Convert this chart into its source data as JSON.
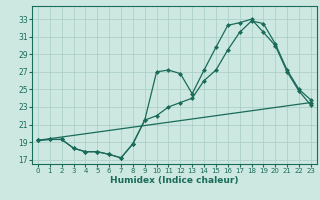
{
  "xlabel": "Humidex (Indice chaleur)",
  "bg_color": "#cce8e0",
  "line_color": "#1a6b5a",
  "grid_color": "#a8ccc4",
  "xlim": [
    -0.5,
    23.5
  ],
  "ylim": [
    16.5,
    34.5
  ],
  "xticks": [
    0,
    1,
    2,
    3,
    4,
    5,
    6,
    7,
    8,
    9,
    10,
    11,
    12,
    13,
    14,
    15,
    16,
    17,
    18,
    19,
    20,
    21,
    22,
    23
  ],
  "yticks": [
    17,
    19,
    21,
    23,
    25,
    27,
    29,
    31,
    33
  ],
  "line1_x": [
    0,
    1,
    2,
    3,
    4,
    5,
    6,
    7,
    8,
    9,
    10,
    11,
    12,
    13,
    14,
    15,
    16,
    17,
    18,
    19,
    20,
    21,
    22,
    23
  ],
  "line1_y": [
    19.2,
    19.3,
    19.3,
    18.3,
    17.9,
    17.9,
    17.6,
    17.2,
    18.8,
    21.5,
    27.0,
    27.2,
    26.8,
    24.5,
    27.2,
    29.8,
    32.3,
    32.6,
    33.0,
    31.5,
    30.0,
    27.0,
    24.8,
    23.2
  ],
  "line2_x": [
    0,
    1,
    2,
    3,
    4,
    5,
    6,
    7,
    8,
    9,
    10,
    11,
    12,
    13,
    14,
    15,
    16,
    17,
    18,
    19,
    20,
    21,
    22,
    23
  ],
  "line2_y": [
    19.2,
    19.3,
    19.3,
    18.3,
    17.9,
    17.9,
    17.6,
    17.2,
    18.8,
    21.5,
    22.0,
    23.0,
    23.5,
    24.0,
    26.0,
    27.2,
    29.5,
    31.5,
    32.8,
    32.5,
    30.2,
    27.2,
    25.0,
    23.8
  ],
  "line3_x": [
    0,
    23
  ],
  "line3_y": [
    19.2,
    23.5
  ]
}
